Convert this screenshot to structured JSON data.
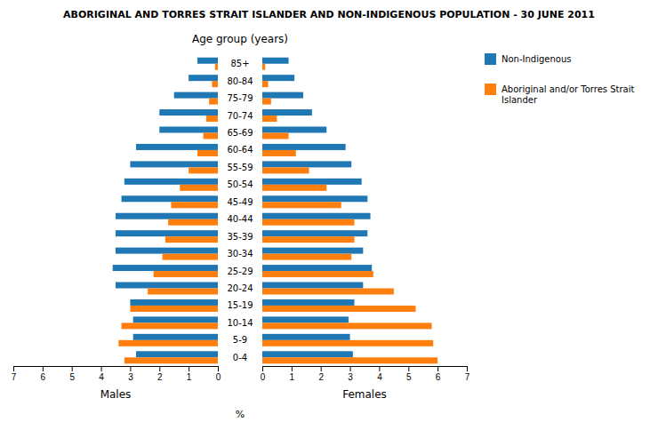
{
  "chart_data": [
    {
      "type": "bar",
      "orientation": "horizontal",
      "title": "ABORIGINAL AND TORRES STRAIT ISLANDER AND NON-INDIGENOUS POPULATION - 30 JUNE 2011",
      "subtitle": "Age group (years)",
      "xlabel": "Males",
      "annotations": [
        "%"
      ],
      "legend": "upper right",
      "categories": [
        "0-4",
        "5-9",
        "10-14",
        "15-19",
        "20-24",
        "25-29",
        "30-34",
        "35-39",
        "40-44",
        "45-49",
        "50-54",
        "55-59",
        "60-64",
        "65-69",
        "70-74",
        "75-79",
        "80-84",
        "85+"
      ],
      "series": [
        {
          "name": "Non-Indigenous",
          "values": [
            2.8,
            2.9,
            2.9,
            3.0,
            3.5,
            3.6,
            3.5,
            3.5,
            3.5,
            3.3,
            3.2,
            3.0,
            2.8,
            2.0,
            2.0,
            1.5,
            1.0,
            0.7
          ]
        },
        {
          "name": "Aboriginal and/or Torres Strait\nIslander",
          "values": [
            3.2,
            3.4,
            3.3,
            3.0,
            2.4,
            2.2,
            1.9,
            1.8,
            1.7,
            1.6,
            1.3,
            1.0,
            0.7,
            0.5,
            0.4,
            0.3,
            0.2,
            0.1
          ]
        }
      ],
      "xlim": [
        7,
        0
      ],
      "xticks": [
        0,
        1,
        2,
        3,
        4,
        5,
        6,
        7
      ]
    },
    {
      "type": "bar",
      "orientation": "horizontal",
      "xlabel": "Females",
      "categories": [
        "0-4",
        "5-9",
        "10-14",
        "15-19",
        "20-24",
        "25-29",
        "30-34",
        "35-39",
        "40-44",
        "45-49",
        "50-54",
        "55-59",
        "60-64",
        "65-69",
        "70-74",
        "75-79",
        "80-84",
        "85+"
      ],
      "series": [
        {
          "name": "Non-Indigenous",
          "values": [
            3.1,
            3.0,
            2.95,
            3.15,
            3.45,
            3.75,
            3.45,
            3.6,
            3.7,
            3.6,
            3.4,
            3.05,
            2.85,
            2.2,
            1.7,
            1.4,
            1.1,
            0.9
          ]
        },
        {
          "name": "Aboriginal and/or Torres Strait\nIslander",
          "values": [
            6.0,
            5.85,
            5.8,
            5.25,
            4.5,
            3.8,
            3.05,
            3.15,
            3.15,
            2.7,
            2.2,
            1.6,
            1.15,
            0.9,
            0.5,
            0.3,
            0.2,
            0.1
          ]
        }
      ],
      "xlim": [
        0,
        7
      ],
      "xticks": [
        0,
        1,
        2,
        3,
        4,
        5,
        6,
        7
      ]
    }
  ]
}
